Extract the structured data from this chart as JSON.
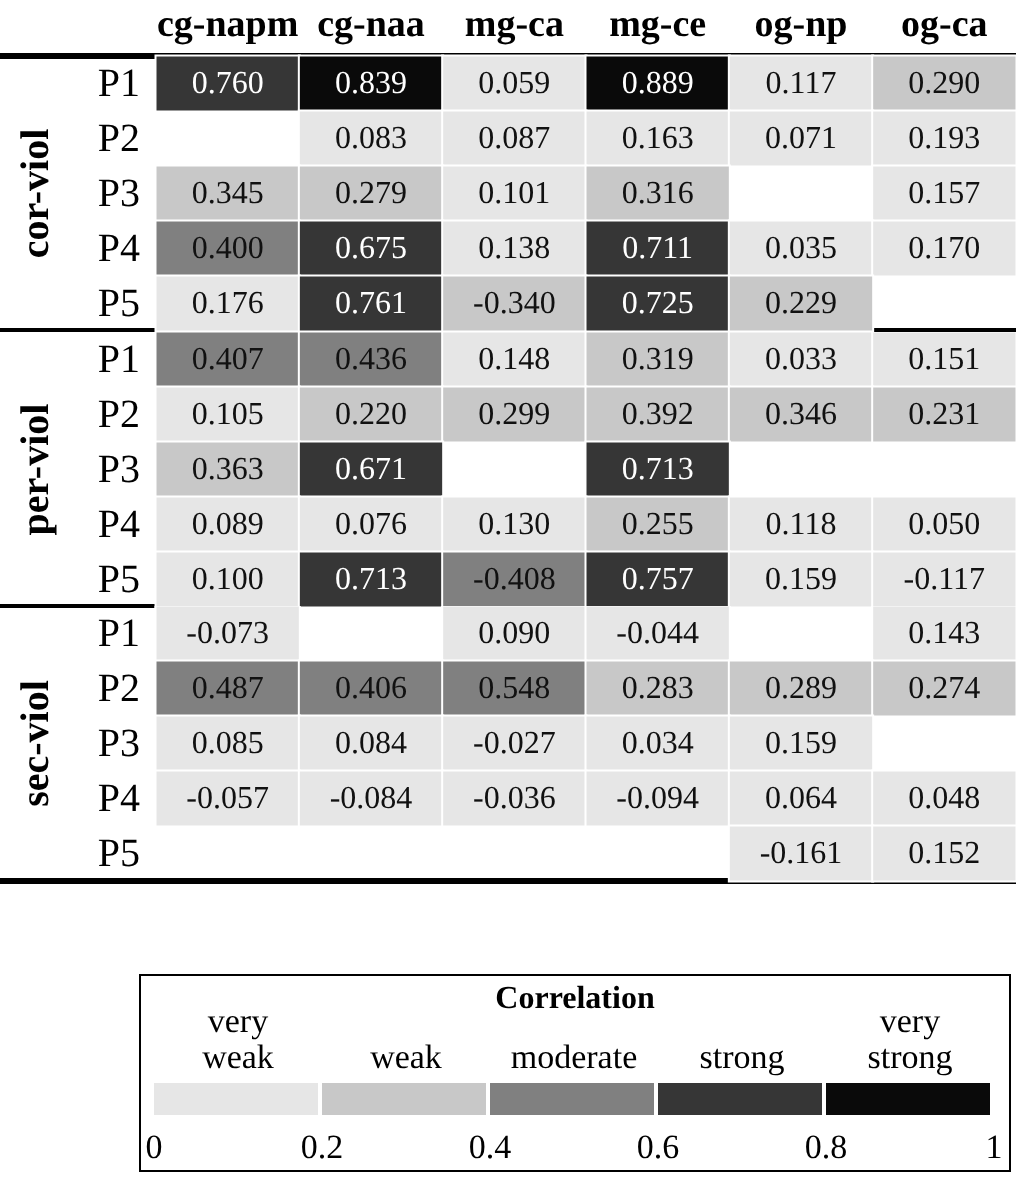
{
  "chart_data": [
    {
      "type": "heatmap",
      "ylabel": "cor-viol",
      "categories": [
        "cg-napm",
        "cg-naa",
        "mg-ca",
        "mg-ce",
        "og-np",
        "og-ca"
      ],
      "y_categories": [
        "P1",
        "P2",
        "P3",
        "P4",
        "P5"
      ],
      "cells": [
        [
          0.76,
          0.839,
          0.059,
          0.889,
          0.117,
          0.29
        ],
        [
          null,
          0.083,
          0.087,
          0.163,
          0.071,
          0.193
        ],
        [
          0.345,
          0.279,
          0.101,
          0.316,
          null,
          0.157
        ],
        [
          0.4,
          0.675,
          0.138,
          0.711,
          0.035,
          0.17
        ],
        [
          0.176,
          0.761,
          -0.34,
          0.725,
          0.229,
          null
        ]
      ],
      "cell_labels": [
        [
          "0.760",
          "0.839",
          "0.059",
          "0.889",
          "0.117",
          "0.290"
        ],
        [
          null,
          "0.083",
          "0.087",
          "0.163",
          "0.071",
          "0.193"
        ],
        [
          "0.345",
          "0.279",
          "0.101",
          "0.316",
          null,
          "0.157"
        ],
        [
          "0.400",
          "0.675",
          "0.138",
          "0.711",
          "0.035",
          "0.170"
        ],
        [
          "0.176",
          "0.761",
          "-0.340",
          "0.725",
          "0.229",
          null
        ]
      ]
    },
    {
      "type": "heatmap",
      "ylabel": "per-viol",
      "categories": [
        null,
        null,
        null,
        null,
        null,
        null
      ],
      "y_categories": [
        "P1",
        "P2",
        "P3",
        "P4",
        "P5"
      ],
      "tick_labels": "y",
      "cells": [
        [
          0.407,
          0.436,
          0.148,
          0.319,
          0.033,
          0.151
        ],
        [
          0.105,
          0.22,
          0.299,
          0.392,
          0.346,
          0.231
        ],
        [
          0.363,
          0.671,
          null,
          0.713,
          null,
          null
        ],
        [
          0.089,
          0.076,
          0.13,
          0.255,
          0.118,
          0.05
        ],
        [
          0.1,
          0.713,
          -0.408,
          0.757,
          0.159,
          -0.117
        ]
      ],
      "cell_labels": [
        [
          "0.407",
          "0.436",
          "0.148",
          "0.319",
          "0.033",
          "0.151"
        ],
        [
          "0.105",
          "0.220",
          "0.299",
          "0.392",
          "0.346",
          "0.231"
        ],
        [
          "0.363",
          "0.671",
          null,
          "0.713",
          null,
          null
        ],
        [
          "0.089",
          "0.076",
          "0.130",
          "0.255",
          "0.118",
          "0.050"
        ],
        [
          "0.100",
          "0.713",
          "-0.408",
          "0.757",
          "0.159",
          "-0.117"
        ]
      ]
    },
    {
      "type": "heatmap",
      "ylabel": "sec-viol",
      "categories": [
        null,
        null,
        null,
        null,
        null,
        null
      ],
      "y_categories": [
        "P1",
        "P2",
        "P3",
        "P4",
        "P5"
      ],
      "tick_labels": "y",
      "cells": [
        [
          -0.073,
          null,
          0.09,
          -0.044,
          null,
          0.143
        ],
        [
          0.487,
          0.406,
          0.548,
          0.283,
          0.289,
          0.274
        ],
        [
          0.085,
          0.084,
          -0.027,
          0.034,
          0.159,
          null
        ],
        [
          -0.057,
          -0.084,
          -0.036,
          -0.094,
          0.064,
          0.048
        ],
        [
          null,
          null,
          null,
          null,
          -0.161,
          0.152
        ]
      ],
      "cell_labels": [
        [
          "-0.073",
          null,
          "0.090",
          "-0.044",
          null,
          "0.143"
        ],
        [
          "0.487",
          "0.406",
          "0.548",
          "0.283",
          "0.289",
          "0.274"
        ],
        [
          "0.085",
          "0.084",
          "-0.027",
          "0.034",
          "0.159",
          null
        ],
        [
          "-0.057",
          "-0.084",
          "-0.036",
          "-0.094",
          "0.064",
          "0.048"
        ],
        [
          null,
          null,
          null,
          null,
          "-0.161",
          "0.152"
        ]
      ],
      "colors": [
        "#e6e6e6",
        "#c8c8c8",
        "#808080",
        "#363636",
        "#0a0a0a"
      ],
      "clim": [
        0,
        1
      ],
      "cticks": [
        0,
        0.2,
        0.4,
        0.6,
        0.8,
        1
      ],
      "clabel": "Correlation",
      "annotations": [
        "very weak",
        "weak",
        "moderate",
        "strong",
        "very strong"
      ]
    }
  ]
}
